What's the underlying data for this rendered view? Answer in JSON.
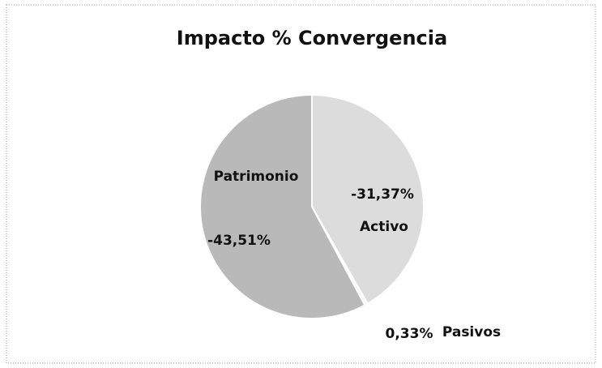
{
  "chart_data": {
    "type": "pie",
    "title": "Impacto % Convergencia",
    "categories": [
      "Activo",
      "Pasivos",
      "Patrimonio"
    ],
    "values": [
      -31.37,
      0.33,
      -43.51
    ],
    "value_labels": [
      "-31,37%",
      "0,33%",
      "-43,51%"
    ],
    "colors": [
      "#dcdcdc",
      "#f4f4f4",
      "#b9b9b9"
    ]
  }
}
